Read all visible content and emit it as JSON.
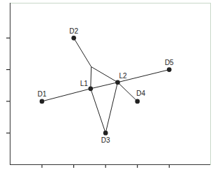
{
  "chart_data": {
    "type": "network",
    "nodes": [
      {
        "label": "D1",
        "x": 1,
        "y": 2
      },
      {
        "label": "D2",
        "x": 2,
        "y": 4
      },
      {
        "label": "D3",
        "x": 3,
        "y": 1
      },
      {
        "label": "D4",
        "x": 4,
        "y": 2
      },
      {
        "label": "D5",
        "x": 5,
        "y": 3
      },
      {
        "label": "L1",
        "x": 2.53,
        "y": 2.4
      },
      {
        "label": "L2",
        "x": 3.38,
        "y": 2.6
      },
      {
        "label": null,
        "x": 2.55,
        "y": 3.09
      }
    ],
    "edges": [
      [
        0,
        5
      ],
      [
        5,
        6
      ],
      [
        6,
        4
      ],
      [
        1,
        7
      ],
      [
        7,
        5
      ],
      [
        7,
        6
      ],
      [
        6,
        3
      ],
      [
        5,
        2
      ],
      [
        6,
        2
      ]
    ],
    "xlim": [
      0,
      6.3
    ],
    "ylim": [
      0,
      5.1
    ],
    "xticks": [
      1,
      2,
      3,
      4,
      5
    ],
    "yticks": [
      1,
      2,
      3,
      4
    ],
    "tick_labels": false,
    "marker": "circle",
    "color": "#222222"
  }
}
